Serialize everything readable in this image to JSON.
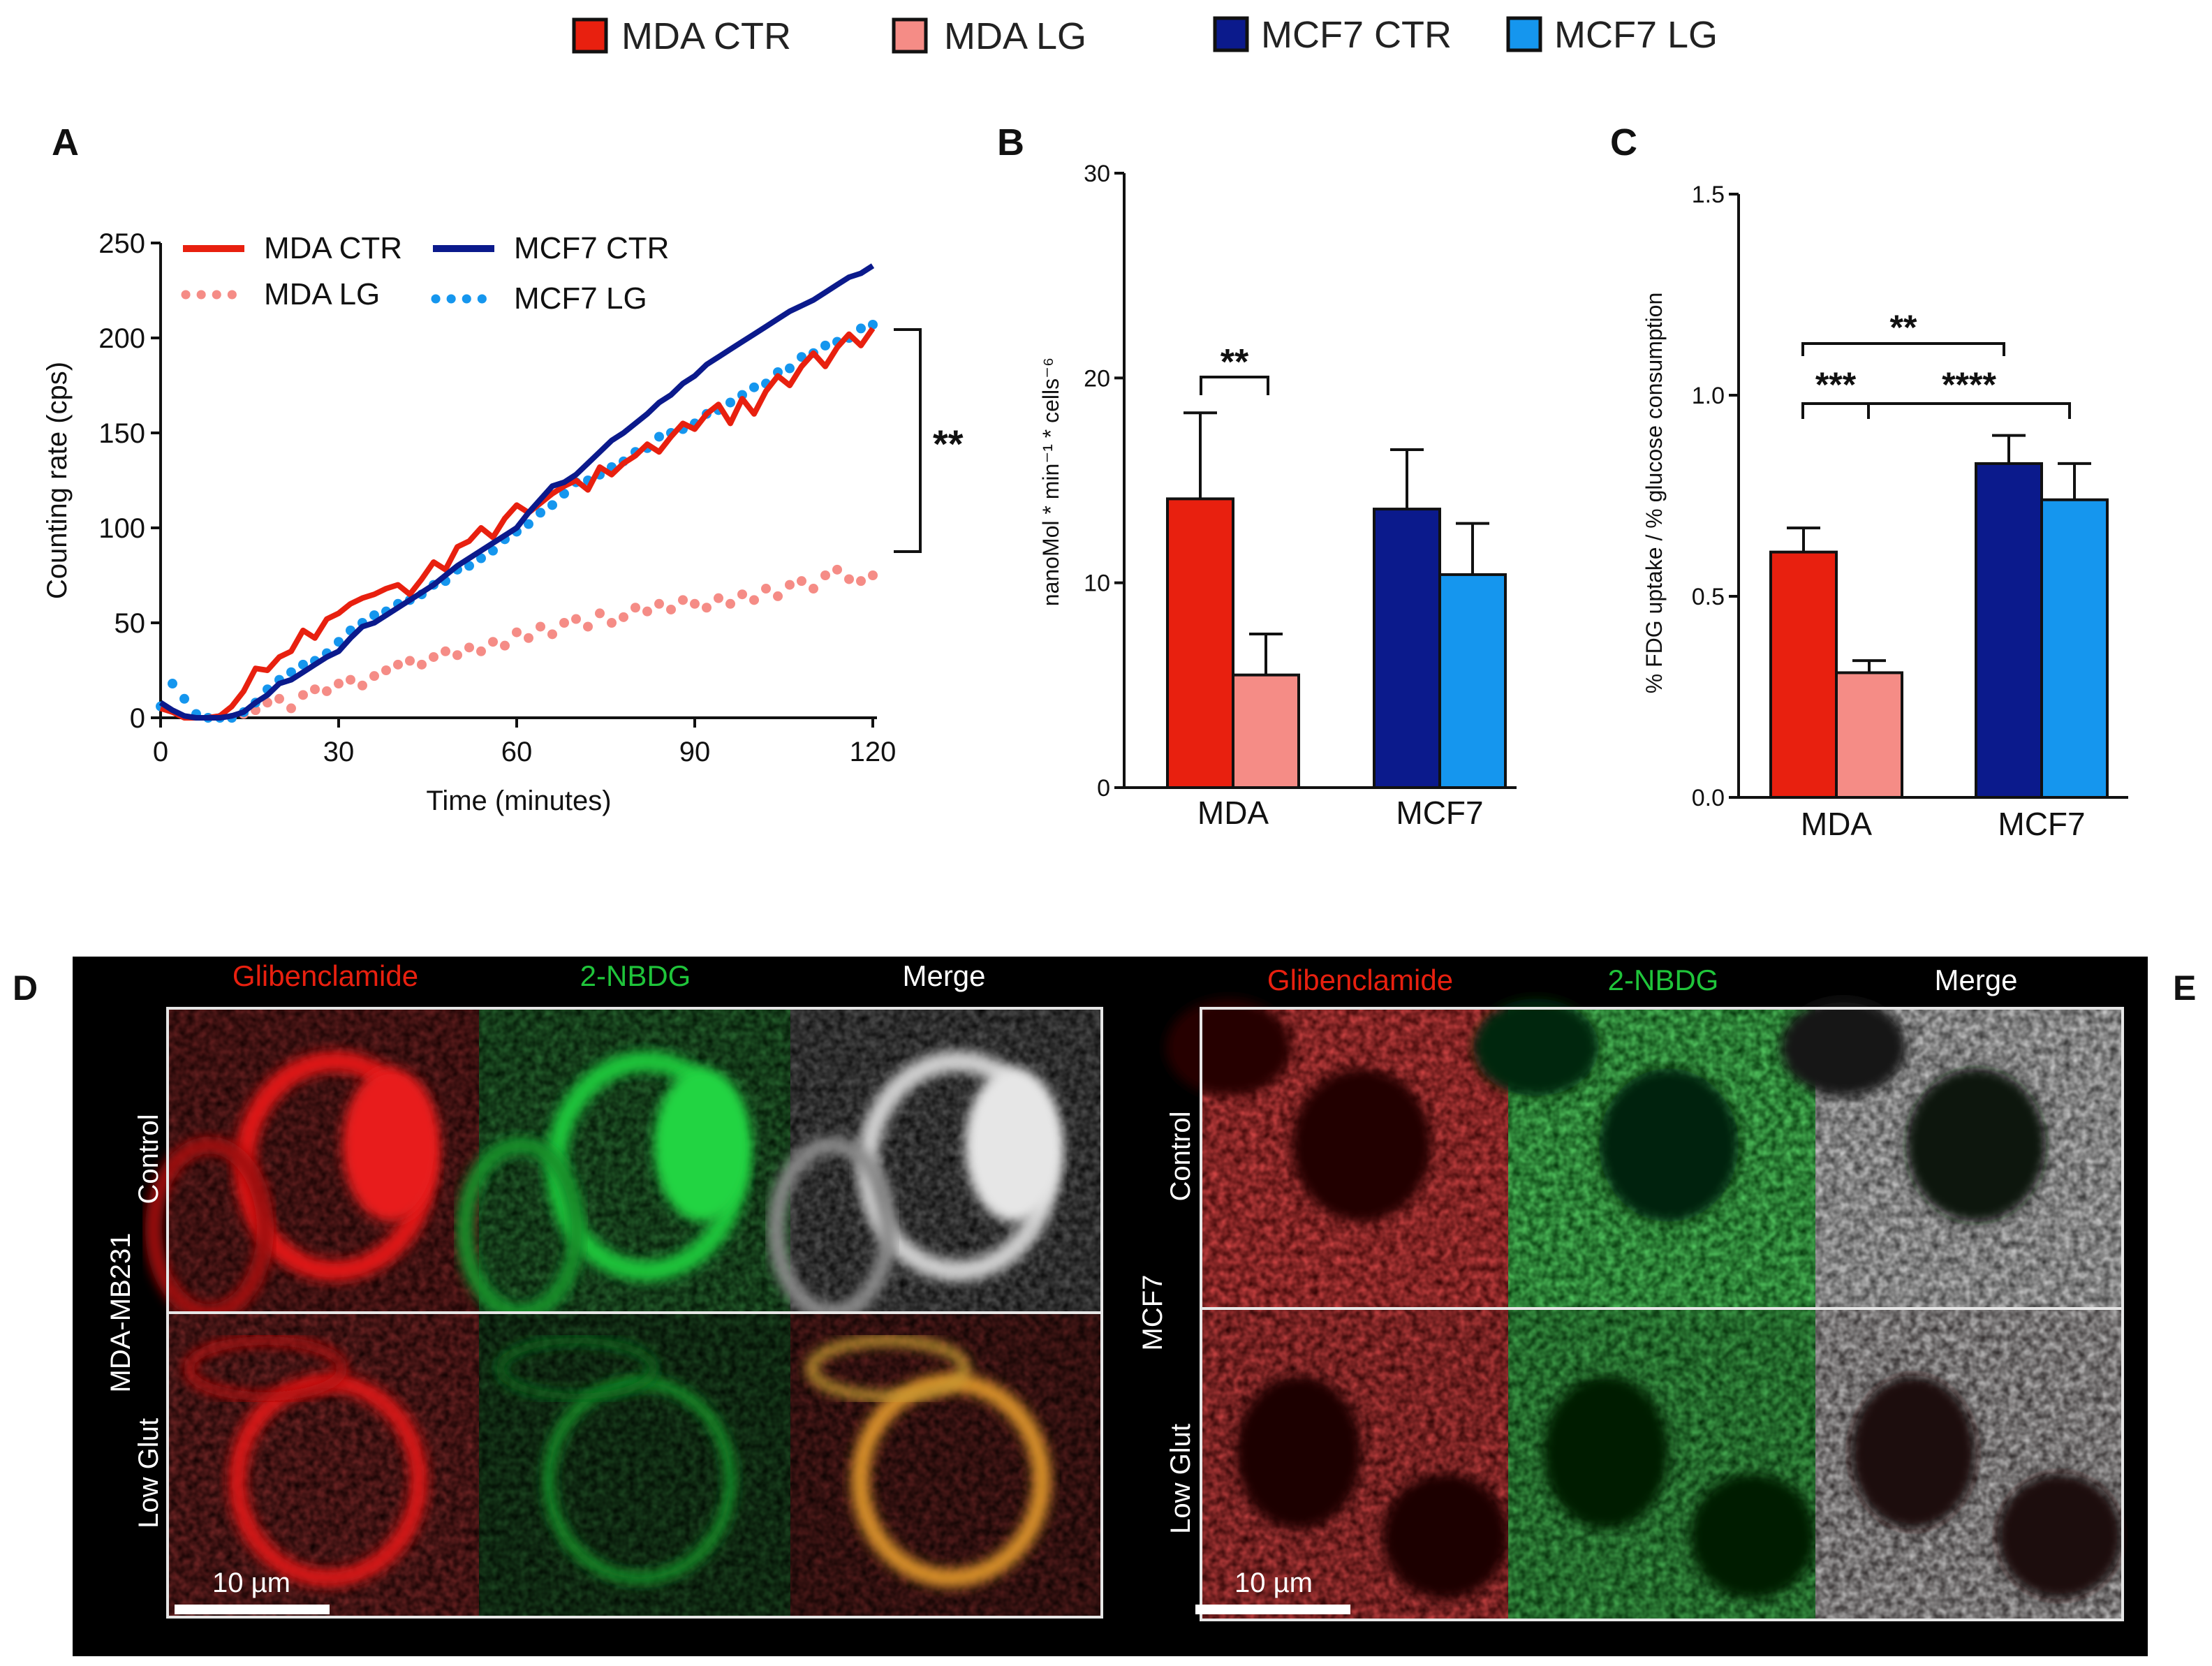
{
  "top_legend": {
    "items": [
      {
        "label": "MDA CTR",
        "color": "#e8200f"
      },
      {
        "label": "MDA LG",
        "color": "#f58c86"
      },
      {
        "label": "MCF7 CTR",
        "color": "#0b1a8c"
      },
      {
        "label": "MCF7 LG",
        "color": "#1596ee"
      }
    ]
  },
  "chart_data": [
    {
      "panel": "A",
      "type": "line",
      "title": "",
      "xlabel": "Time (minutes)",
      "ylabel": "Counting rate (cps)",
      "xlim": [
        0,
        120
      ],
      "ylim": [
        0,
        250
      ],
      "xticks": [
        0,
        30,
        60,
        90,
        120
      ],
      "yticks": [
        0,
        50,
        100,
        150,
        200,
        250
      ],
      "legend": "top-left",
      "significance": "**",
      "series": [
        {
          "name": "MDA CTR",
          "style": "solid",
          "color": "#e8200f",
          "x": [
            0,
            2,
            4,
            6,
            8,
            10,
            12,
            14,
            16,
            18,
            20,
            22,
            24,
            26,
            28,
            30,
            32,
            34,
            36,
            38,
            40,
            42,
            44,
            46,
            48,
            50,
            52,
            54,
            56,
            58,
            60,
            62,
            64,
            66,
            68,
            70,
            72,
            74,
            76,
            78,
            80,
            82,
            84,
            86,
            88,
            90,
            92,
            94,
            96,
            98,
            100,
            102,
            104,
            106,
            108,
            110,
            112,
            114,
            116,
            118,
            120
          ],
          "y": [
            5,
            3,
            0,
            0,
            0,
            1,
            6,
            14,
            26,
            25,
            32,
            35,
            46,
            42,
            52,
            55,
            60,
            63,
            65,
            68,
            70,
            65,
            73,
            82,
            78,
            90,
            93,
            100,
            95,
            105,
            112,
            108,
            113,
            118,
            122,
            125,
            120,
            132,
            128,
            134,
            138,
            144,
            140,
            148,
            155,
            152,
            160,
            165,
            155,
            168,
            160,
            172,
            180,
            175,
            185,
            192,
            185,
            195,
            202,
            196,
            205
          ]
        },
        {
          "name": "MCF7 CTR",
          "style": "solid",
          "color": "#0b1a8c",
          "x": [
            0,
            2,
            4,
            6,
            8,
            10,
            12,
            14,
            16,
            18,
            20,
            22,
            24,
            26,
            28,
            30,
            32,
            34,
            36,
            38,
            40,
            42,
            44,
            46,
            48,
            50,
            52,
            54,
            56,
            58,
            60,
            62,
            64,
            66,
            68,
            70,
            72,
            74,
            76,
            78,
            80,
            82,
            84,
            86,
            88,
            90,
            92,
            94,
            96,
            98,
            100,
            102,
            104,
            106,
            108,
            110,
            112,
            114,
            116,
            118,
            120
          ],
          "y": [
            8,
            4,
            1,
            0,
            0,
            0,
            1,
            3,
            8,
            12,
            18,
            20,
            24,
            28,
            32,
            35,
            42,
            48,
            50,
            54,
            58,
            62,
            66,
            70,
            75,
            80,
            84,
            88,
            92,
            96,
            100,
            108,
            115,
            122,
            124,
            128,
            134,
            140,
            146,
            150,
            155,
            160,
            166,
            170,
            176,
            180,
            186,
            190,
            194,
            198,
            202,
            206,
            210,
            214,
            217,
            220,
            224,
            228,
            232,
            234,
            238
          ]
        },
        {
          "name": "MDA LG",
          "style": "dotted",
          "color": "#f58c86",
          "x": [
            12,
            14,
            16,
            18,
            20,
            22,
            24,
            26,
            28,
            30,
            32,
            34,
            36,
            38,
            40,
            42,
            44,
            46,
            48,
            50,
            52,
            54,
            56,
            58,
            60,
            62,
            64,
            66,
            68,
            70,
            72,
            74,
            76,
            78,
            80,
            82,
            84,
            86,
            88,
            90,
            92,
            94,
            96,
            98,
            100,
            102,
            104,
            106,
            108,
            110,
            112,
            114,
            116,
            118,
            120
          ],
          "y": [
            0,
            2,
            4,
            8,
            10,
            5,
            12,
            15,
            14,
            18,
            20,
            17,
            22,
            25,
            28,
            30,
            28,
            32,
            35,
            33,
            37,
            35,
            40,
            38,
            45,
            42,
            48,
            44,
            50,
            52,
            48,
            55,
            50,
            53,
            58,
            56,
            60,
            57,
            62,
            60,
            58,
            63,
            60,
            65,
            62,
            68,
            64,
            70,
            72,
            68,
            75,
            78,
            73,
            72,
            75
          ]
        },
        {
          "name": "MCF7 LG",
          "style": "dotted",
          "color": "#1596ee",
          "x": [
            0,
            2,
            4,
            6,
            8,
            10,
            12,
            14,
            16,
            18,
            20,
            22,
            24,
            26,
            28,
            30,
            32,
            34,
            36,
            38,
            40,
            42,
            44,
            46,
            48,
            50,
            52,
            54,
            56,
            58,
            60,
            62,
            64,
            66,
            68,
            70,
            72,
            74,
            76,
            78,
            80,
            82,
            84,
            86,
            88,
            90,
            92,
            94,
            96,
            98,
            100,
            102,
            104,
            106,
            108,
            110,
            112,
            114,
            116,
            118,
            120
          ],
          "y": [
            6,
            18,
            10,
            2,
            0,
            0,
            0,
            3,
            8,
            15,
            20,
            24,
            28,
            30,
            34,
            40,
            46,
            50,
            54,
            56,
            60,
            62,
            65,
            70,
            72,
            78,
            80,
            84,
            88,
            94,
            98,
            102,
            108,
            112,
            118,
            124,
            125,
            128,
            132,
            135,
            140,
            142,
            148,
            150,
            152,
            155,
            160,
            162,
            166,
            170,
            174,
            176,
            182,
            184,
            190,
            192,
            196,
            198,
            200,
            205,
            207
          ]
        }
      ]
    },
    {
      "panel": "B",
      "type": "bar",
      "title": "",
      "xlabel": "",
      "ylabel": "nanoMol * min⁻¹ * cells⁻⁶",
      "ylim": [
        0,
        30
      ],
      "yticks": [
        0,
        10,
        20,
        30
      ],
      "groups": [
        "MDA",
        "MCF7"
      ],
      "series": [
        {
          "name": "CTR",
          "colors": [
            "#e8200f",
            "#0b1a8c"
          ],
          "values": [
            14.1,
            13.6
          ],
          "errors": [
            4.2,
            2.9
          ]
        },
        {
          "name": "LG",
          "colors": [
            "#f58c86",
            "#1596ee"
          ],
          "values": [
            5.5,
            10.4
          ],
          "errors": [
            2.0,
            2.5
          ]
        }
      ],
      "annotations": [
        {
          "label": "**",
          "between": [
            "MDA CTR",
            "MDA LG"
          ]
        }
      ]
    },
    {
      "panel": "C",
      "type": "bar",
      "title": "",
      "xlabel": "",
      "ylabel": "% FDG uptake / % glucose consumption",
      "ylim": [
        0,
        1.5
      ],
      "yticks": [
        "0.0",
        "0.5",
        "1.0",
        "1.5"
      ],
      "groups": [
        "MDA",
        "MCF7"
      ],
      "series": [
        {
          "name": "CTR",
          "colors": [
            "#e8200f",
            "#0b1a8c"
          ],
          "values": [
            0.61,
            0.83
          ],
          "errors": [
            0.06,
            0.07
          ]
        },
        {
          "name": "LG",
          "colors": [
            "#f58c86",
            "#1596ee"
          ],
          "values": [
            0.31,
            0.74
          ],
          "errors": [
            0.03,
            0.09
          ]
        }
      ],
      "annotations": [
        {
          "label": "**",
          "between": [
            "MDA CTR",
            "MCF7 CTR"
          ]
        },
        {
          "label": "***",
          "between": [
            "MDA CTR",
            "MDA LG"
          ]
        },
        {
          "label": "****",
          "between": [
            "MDA LG",
            "MCF7 LG"
          ]
        }
      ]
    }
  ],
  "panel_letters": {
    "A": "A",
    "B": "B",
    "C": "C",
    "D": "D",
    "E": "E"
  },
  "microscopy": {
    "left": {
      "columns": [
        "Glibenclamide",
        "2-NBDG",
        "Merge"
      ],
      "rows": [
        "Control",
        "Low Glut"
      ],
      "cell_line": "MDA-MB231",
      "scale_bar": "10 µm"
    },
    "right": {
      "columns": [
        "Glibenclamide",
        "2-NBDG",
        "Merge"
      ],
      "rows": [
        "Control",
        "Low Glut"
      ],
      "cell_line": "MCF7",
      "scale_bar": "10 µm"
    }
  }
}
